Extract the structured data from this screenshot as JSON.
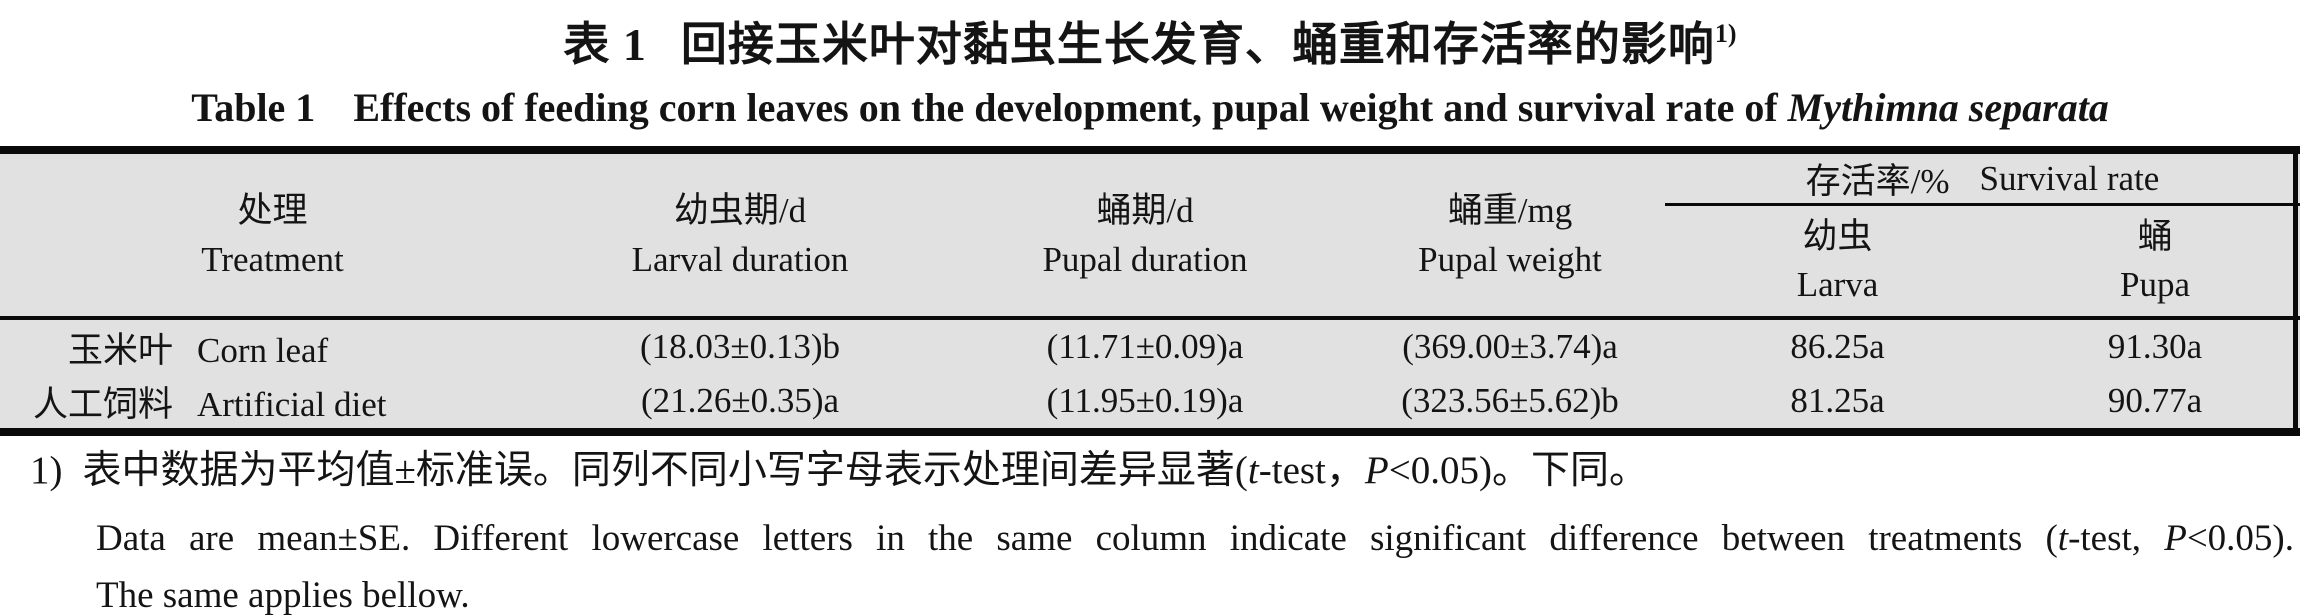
{
  "colors": {
    "page_bg": "#ffffff",
    "table_bg": "#e1e1e1",
    "rule": "#0a0a0a",
    "text": "#141414"
  },
  "title": {
    "cn_label": "表 1",
    "cn_text": "回接玉米叶对黏虫生长发育、蛹重和存活率的影响",
    "cn_sup": "1)",
    "en_label": "Table 1",
    "en_text": "Effects of feeding corn leaves on the development, pupal weight and survival rate of",
    "en_species": "Mythimna separata"
  },
  "table": {
    "columns": [
      {
        "cn": "处理",
        "en": "Treatment"
      },
      {
        "cn": "幼虫期/d",
        "en": "Larval duration"
      },
      {
        "cn": "蛹期/d",
        "en": "Pupal duration"
      },
      {
        "cn": "蛹重/mg",
        "en": "Pupal weight"
      }
    ],
    "survival_group": {
      "cn": "存活率/%",
      "en": "Survival rate",
      "sub": [
        {
          "cn": "幼虫",
          "en": "Larva"
        },
        {
          "cn": "蛹",
          "en": "Pupa"
        }
      ]
    },
    "rows": [
      {
        "treatment_cn": "玉米叶",
        "treatment_en": "Corn leaf",
        "larval_duration": "(18.03±0.13)b",
        "pupal_duration": "(11.71±0.09)a",
        "pupal_weight": "(369.00±3.74)a",
        "survival_larva": "86.25a",
        "survival_pupa": "91.30a"
      },
      {
        "treatment_cn": "人工饲料",
        "treatment_en": "Artificial diet",
        "larval_duration": "(21.26±0.35)a",
        "pupal_duration": "(11.95±0.19)a",
        "pupal_weight": "(323.56±5.62)b",
        "survival_larva": "81.25a",
        "survival_pupa": "90.77a"
      }
    ]
  },
  "footnotes": {
    "marker": "1)",
    "cn_parts": {
      "p0": "表中数据为平均值±标准误。同列不同小写字母表示处理间差异显著(",
      "p1": "t",
      "p2": "-test，",
      "p3": "P",
      "p4": "<0.05)。下同。"
    },
    "en_parts": {
      "p0": "Data are mean±SE. Different lowercase letters in the same column indicate significant difference between treatments (",
      "p1": "t",
      "p2": "-test, ",
      "p3": "P",
      "p4": "<0.05)."
    },
    "en_line2": "The same applies bellow."
  }
}
